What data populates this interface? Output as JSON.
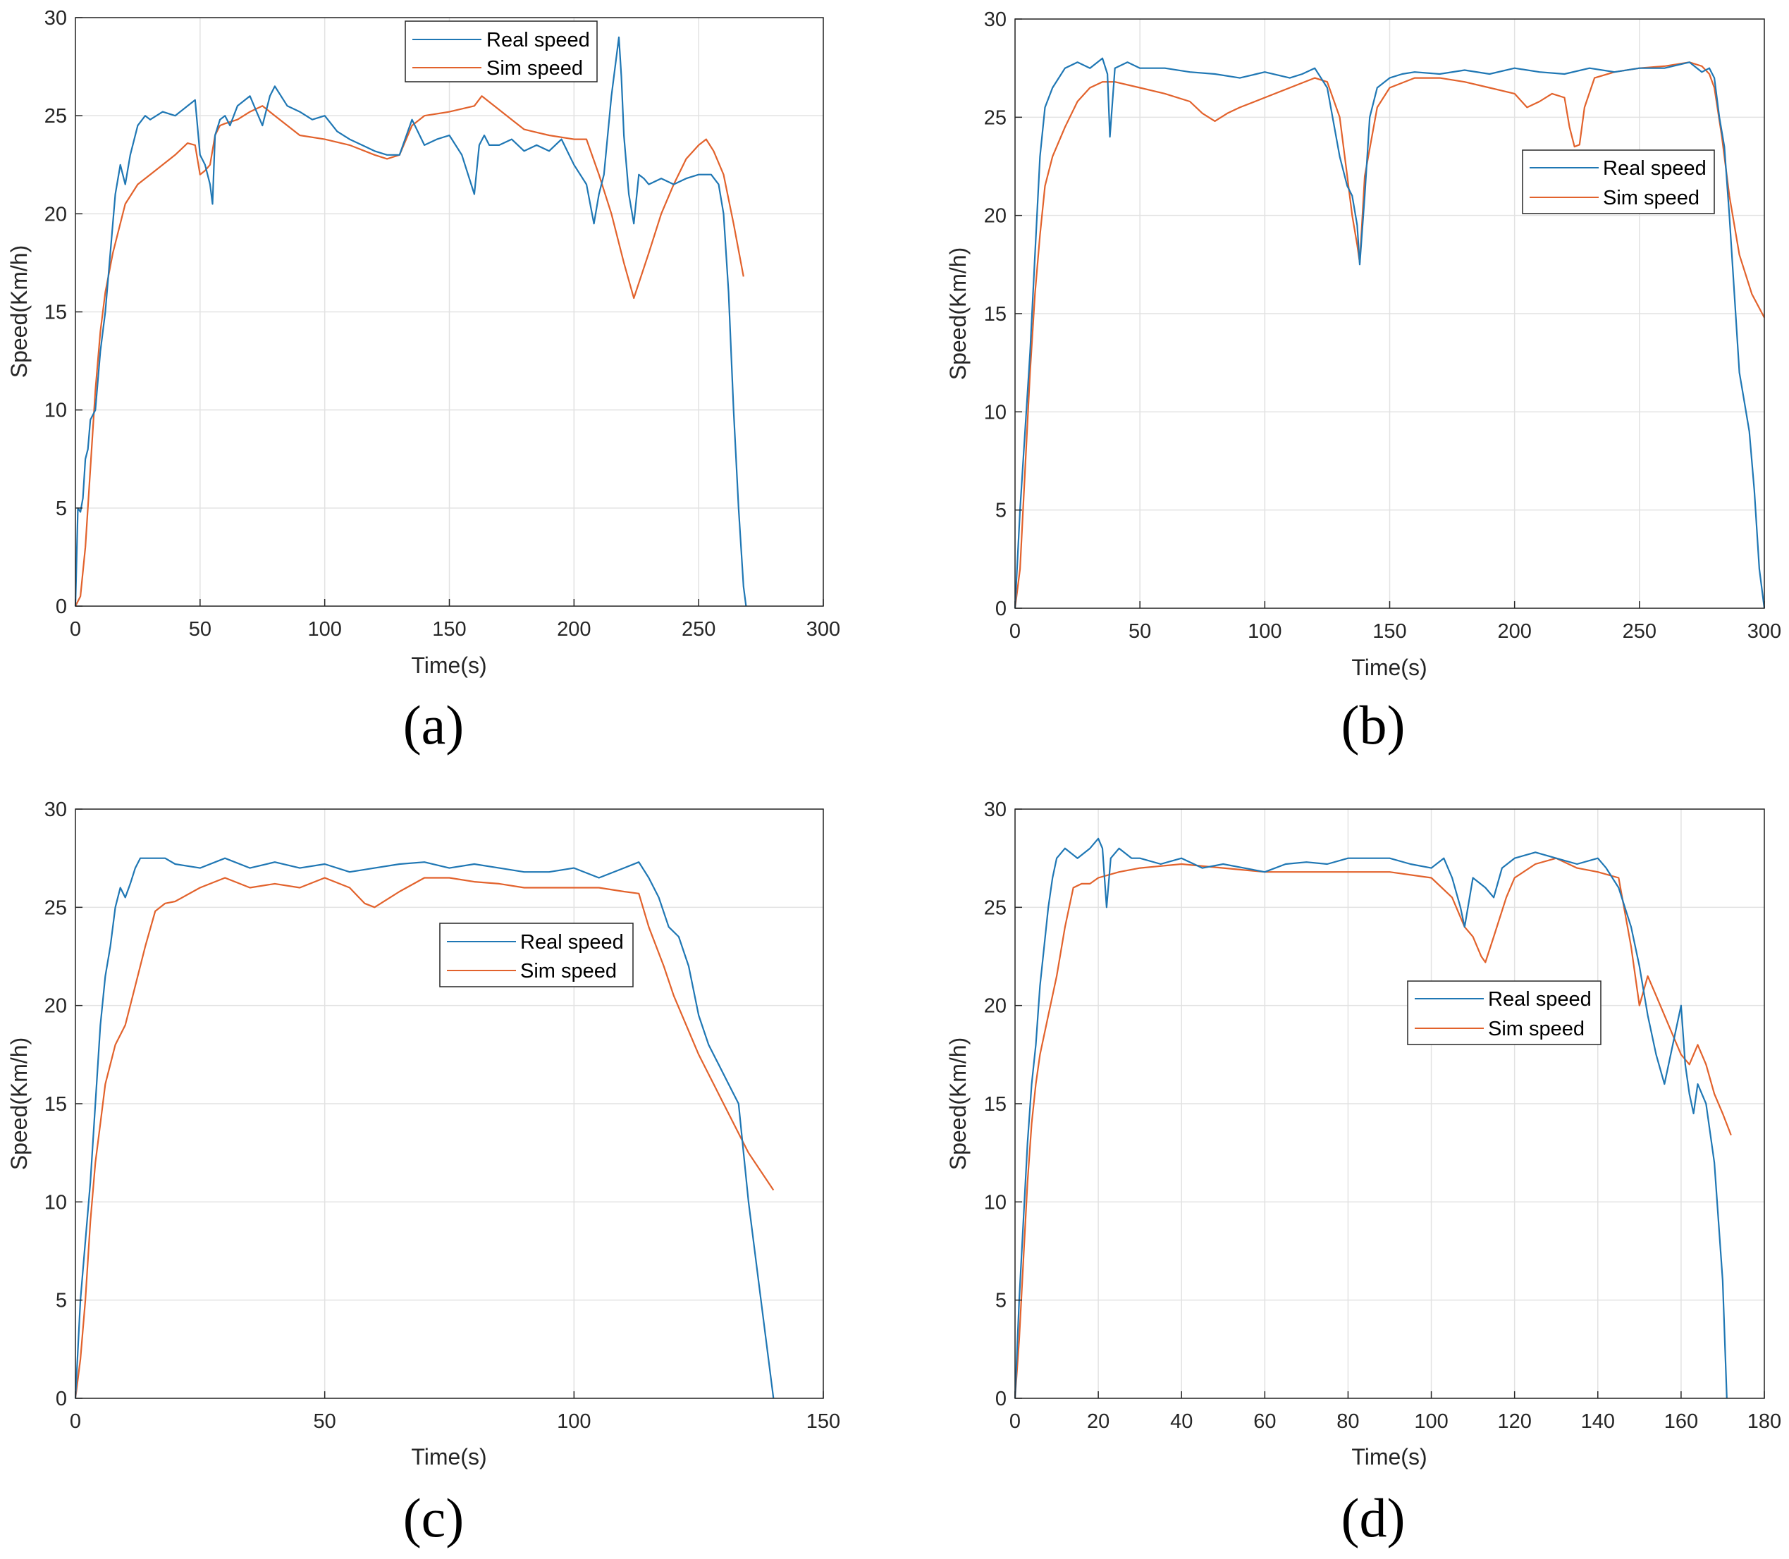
{
  "colors": {
    "real": "#1f77b4",
    "sim": "#e2622c",
    "grid": "#e2e2e2",
    "axis": "#262626"
  },
  "chart_data": [
    {
      "panel": "(a)",
      "type": "line",
      "xlabel": "Time(s)",
      "ylabel": "Speed(Km/h)",
      "xlim": [
        0,
        300
      ],
      "ylim": [
        0,
        30
      ],
      "xticks": [
        0,
        50,
        100,
        150,
        200,
        250,
        300
      ],
      "yticks": [
        0,
        5,
        10,
        15,
        20,
        25,
        30
      ],
      "grid": true,
      "legend_position": "top-center",
      "series": [
        {
          "name": "Real speed",
          "color": "real",
          "x": [
            0,
            1,
            2,
            3,
            4,
            5,
            6,
            8,
            10,
            12,
            14,
            16,
            18,
            20,
            22,
            25,
            28,
            30,
            35,
            40,
            45,
            48,
            50,
            52,
            54,
            55,
            56,
            58,
            60,
            62,
            65,
            70,
            75,
            78,
            80,
            85,
            90,
            95,
            100,
            105,
            110,
            115,
            120,
            125,
            130,
            135,
            140,
            145,
            150,
            155,
            160,
            162,
            164,
            166,
            170,
            175,
            180,
            185,
            190,
            195,
            200,
            205,
            208,
            210,
            212,
            215,
            218,
            219,
            220,
            222,
            224,
            226,
            228,
            230,
            235,
            240,
            245,
            250,
            255,
            258,
            260,
            262,
            264,
            266,
            268,
            269
          ],
          "y": [
            0,
            5,
            4.8,
            5.5,
            7.5,
            8,
            9.5,
            10,
            13,
            15,
            18,
            21,
            22.5,
            21.5,
            23,
            24.5,
            25,
            24.8,
            25.2,
            25,
            25.5,
            25.8,
            23,
            22.5,
            21.5,
            20.5,
            24,
            24.8,
            25,
            24.5,
            25.5,
            26,
            24.5,
            26,
            26.5,
            25.5,
            25.2,
            24.8,
            25,
            24.2,
            23.8,
            23.5,
            23.2,
            23,
            23,
            24.8,
            23.5,
            23.8,
            24,
            23,
            21,
            23.5,
            24,
            23.5,
            23.5,
            23.8,
            23.2,
            23.5,
            23.2,
            23.8,
            22.5,
            21.5,
            19.5,
            21,
            22,
            26,
            29,
            27,
            24,
            21,
            19.5,
            22,
            21.8,
            21.5,
            21.8,
            21.5,
            21.8,
            22,
            22,
            21.5,
            20,
            16,
            10,
            5,
            1,
            0
          ]
        },
        {
          "name": "Sim speed",
          "color": "sim",
          "x": [
            0,
            2,
            4,
            6,
            8,
            10,
            12,
            15,
            20,
            25,
            30,
            35,
            40,
            45,
            48,
            50,
            52,
            54,
            56,
            58,
            60,
            65,
            70,
            75,
            80,
            85,
            90,
            100,
            110,
            120,
            125,
            130,
            135,
            140,
            150,
            160,
            163,
            165,
            170,
            175,
            180,
            190,
            200,
            205,
            210,
            215,
            220,
            224,
            230,
            235,
            240,
            245,
            250,
            253,
            256,
            260,
            264,
            268
          ],
          "y": [
            0,
            0.5,
            3,
            7,
            11,
            14,
            16,
            18,
            20.5,
            21.5,
            22,
            22.5,
            23,
            23.6,
            23.5,
            22,
            22.2,
            22.5,
            24,
            24.5,
            24.6,
            24.8,
            25.2,
            25.5,
            25,
            24.5,
            24,
            23.8,
            23.5,
            23,
            22.8,
            23,
            24.5,
            25,
            25.2,
            25.5,
            26,
            25.8,
            25.3,
            24.8,
            24.3,
            24,
            23.8,
            23.8,
            22,
            20,
            17.5,
            15.7,
            18,
            20,
            21.5,
            22.8,
            23.5,
            23.8,
            23.2,
            22,
            19.5,
            16.8
          ]
        }
      ]
    },
    {
      "panel": "(b)",
      "type": "line",
      "xlabel": "Time(s)",
      "ylabel": "Speed(Km/h)",
      "xlim": [
        0,
        300
      ],
      "ylim": [
        0,
        30
      ],
      "xticks": [
        0,
        50,
        100,
        150,
        200,
        250,
        300
      ],
      "yticks": [
        0,
        5,
        10,
        15,
        20,
        25,
        30
      ],
      "grid": true,
      "legend_position": "middle-right",
      "series": [
        {
          "name": "Real speed",
          "color": "real",
          "x": [
            0,
            2,
            4,
            6,
            8,
            10,
            12,
            15,
            20,
            25,
            30,
            35,
            37,
            38,
            40,
            45,
            50,
            60,
            70,
            80,
            90,
            100,
            110,
            115,
            120,
            125,
            130,
            133,
            135,
            137,
            138,
            140,
            142,
            145,
            150,
            155,
            160,
            170,
            180,
            190,
            200,
            210,
            220,
            230,
            240,
            250,
            260,
            270,
            275,
            278,
            280,
            282,
            284,
            286,
            288,
            290,
            292,
            294,
            296,
            298,
            300
          ],
          "y": [
            0,
            5,
            9,
            13,
            18,
            23,
            25.5,
            26.5,
            27.5,
            27.8,
            27.5,
            28,
            27.2,
            24,
            27.5,
            27.8,
            27.5,
            27.5,
            27.3,
            27.2,
            27,
            27.3,
            27,
            27.2,
            27.5,
            26.5,
            23,
            21.5,
            21,
            19.5,
            17.5,
            21,
            25,
            26.5,
            27,
            27.2,
            27.3,
            27.2,
            27.4,
            27.2,
            27.5,
            27.3,
            27.2,
            27.5,
            27.3,
            27.5,
            27.5,
            27.8,
            27.3,
            27.5,
            27,
            25,
            23.5,
            20,
            16,
            12,
            10.5,
            9,
            6,
            2,
            0
          ]
        },
        {
          "name": "Sim speed",
          "color": "sim",
          "x": [
            0,
            2,
            4,
            6,
            8,
            10,
            12,
            15,
            20,
            25,
            30,
            35,
            40,
            50,
            60,
            70,
            75,
            80,
            85,
            90,
            100,
            110,
            120,
            125,
            130,
            133,
            135,
            137,
            138,
            140,
            145,
            150,
            160,
            170,
            180,
            190,
            200,
            205,
            210,
            215,
            220,
            222,
            224,
            226,
            228,
            232,
            240,
            250,
            260,
            270,
            275,
            278,
            280,
            283,
            286,
            290,
            295,
            300
          ],
          "y": [
            0,
            2,
            7,
            12,
            16,
            19,
            21.5,
            23,
            24.5,
            25.8,
            26.5,
            26.8,
            26.8,
            26.5,
            26.2,
            25.8,
            25.2,
            24.8,
            25.2,
            25.5,
            26,
            26.5,
            27,
            26.8,
            25,
            22,
            20,
            18.5,
            17.6,
            22,
            25.5,
            26.5,
            27,
            27,
            26.8,
            26.5,
            26.2,
            25.5,
            25.8,
            26.2,
            26,
            24.5,
            23.5,
            23.6,
            25.5,
            27,
            27.3,
            27.5,
            27.6,
            27.8,
            27.6,
            27.2,
            26.5,
            24,
            21,
            18,
            16,
            14.8
          ]
        }
      ]
    },
    {
      "panel": "(c)",
      "type": "line",
      "xlabel": "Time(s)",
      "ylabel": "Speed(Km/h)",
      "xlim": [
        0,
        150
      ],
      "ylim": [
        0,
        30
      ],
      "xticks": [
        0,
        50,
        100,
        150
      ],
      "yticks": [
        0,
        5,
        10,
        15,
        20,
        25,
        30
      ],
      "grid": true,
      "legend_position": "middle-center",
      "series": [
        {
          "name": "Real speed",
          "color": "real",
          "x": [
            0,
            1,
            2,
            3,
            4,
            5,
            6,
            7,
            8,
            9,
            10,
            11,
            12,
            13,
            15,
            18,
            20,
            25,
            30,
            35,
            40,
            45,
            50,
            55,
            60,
            65,
            70,
            75,
            80,
            85,
            90,
            95,
            100,
            105,
            110,
            113,
            115,
            117,
            119,
            121,
            123,
            125,
            127,
            129,
            131,
            133,
            135,
            137,
            139,
            140
          ],
          "y": [
            0,
            5,
            8,
            11,
            15,
            19,
            21.5,
            23,
            25,
            26,
            25.5,
            26.2,
            27,
            27.5,
            27.5,
            27.5,
            27.2,
            27,
            27.5,
            27,
            27.3,
            27,
            27.2,
            26.8,
            27,
            27.2,
            27.3,
            27,
            27.2,
            27,
            26.8,
            26.8,
            27,
            26.5,
            27,
            27.3,
            26.5,
            25.5,
            24,
            23.5,
            22,
            19.5,
            18,
            17,
            16,
            15,
            10,
            6,
            2,
            0
          ]
        },
        {
          "name": "Sim speed",
          "color": "sim",
          "x": [
            0,
            1,
            2,
            3,
            4,
            5,
            6,
            7,
            8,
            10,
            12,
            14,
            16,
            18,
            20,
            25,
            30,
            35,
            40,
            45,
            50,
            55,
            58,
            60,
            65,
            70,
            75,
            80,
            85,
            90,
            95,
            100,
            105,
            110,
            113,
            115,
            118,
            120,
            125,
            130,
            135,
            140
          ],
          "y": [
            0,
            2,
            5,
            9,
            12,
            14,
            16,
            17,
            18,
            19,
            21,
            23,
            24.8,
            25.2,
            25.3,
            26,
            26.5,
            26,
            26.2,
            26,
            26.5,
            26,
            25.2,
            25,
            25.8,
            26.5,
            26.5,
            26.3,
            26.2,
            26,
            26,
            26,
            26,
            25.8,
            25.7,
            24,
            22,
            20.5,
            17.5,
            15,
            12.5,
            10.6
          ]
        }
      ]
    },
    {
      "panel": "(d)",
      "type": "line",
      "xlabel": "Time(s)",
      "ylabel": "Speed(Km/h)",
      "xlim": [
        0,
        180
      ],
      "ylim": [
        0,
        30
      ],
      "xticks": [
        0,
        20,
        40,
        60,
        80,
        100,
        120,
        140,
        160,
        180
      ],
      "yticks": [
        0,
        5,
        10,
        15,
        20,
        25,
        30
      ],
      "grid": true,
      "legend_position": "middle-right",
      "series": [
        {
          "name": "Real speed",
          "color": "real",
          "x": [
            0,
            1,
            2,
            3,
            4,
            5,
            6,
            7,
            8,
            9,
            10,
            12,
            15,
            18,
            20,
            21,
            22,
            23,
            25,
            28,
            30,
            35,
            40,
            45,
            50,
            55,
            60,
            65,
            70,
            75,
            80,
            85,
            90,
            95,
            100,
            103,
            105,
            107,
            108,
            110,
            113,
            115,
            117,
            120,
            125,
            130,
            135,
            140,
            142,
            145,
            148,
            150,
            152,
            154,
            156,
            158,
            160,
            161,
            162,
            163,
            164,
            166,
            168,
            170,
            171
          ],
          "y": [
            0,
            5,
            9,
            13,
            16,
            18,
            21,
            23,
            25,
            26.5,
            27.5,
            28,
            27.5,
            28,
            28.5,
            28,
            25,
            27.5,
            28,
            27.5,
            27.5,
            27.2,
            27.5,
            27,
            27.2,
            27,
            26.8,
            27.2,
            27.3,
            27.2,
            27.5,
            27.5,
            27.5,
            27.2,
            27,
            27.5,
            26.5,
            25,
            24,
            26.5,
            26,
            25.5,
            27,
            27.5,
            27.8,
            27.5,
            27.2,
            27.5,
            27,
            26,
            24,
            22,
            19.5,
            17.5,
            16,
            18,
            20,
            17,
            15.5,
            14.5,
            16,
            15,
            12,
            6,
            0
          ]
        },
        {
          "name": "Sim speed",
          "color": "sim",
          "x": [
            0,
            1,
            2,
            3,
            4,
            5,
            6,
            8,
            10,
            12,
            14,
            16,
            18,
            20,
            25,
            30,
            40,
            50,
            60,
            70,
            80,
            90,
            100,
            105,
            108,
            110,
            112,
            113,
            115,
            118,
            120,
            125,
            130,
            135,
            140,
            145,
            148,
            150,
            152,
            154,
            156,
            158,
            160,
            162,
            164,
            166,
            168,
            170,
            172
          ],
          "y": [
            0,
            3,
            7,
            11,
            14,
            16,
            17.5,
            19.5,
            21.5,
            24,
            26,
            26.2,
            26.2,
            26.5,
            26.8,
            27,
            27.2,
            27,
            26.8,
            26.8,
            26.8,
            26.8,
            26.5,
            25.5,
            24,
            23.5,
            22.5,
            22.2,
            23.5,
            25.5,
            26.5,
            27.2,
            27.5,
            27,
            26.8,
            26.5,
            23,
            20,
            21.5,
            20.5,
            19.5,
            18.5,
            17.5,
            17,
            18,
            17,
            15.5,
            14.5,
            13.4
          ]
        }
      ]
    }
  ]
}
